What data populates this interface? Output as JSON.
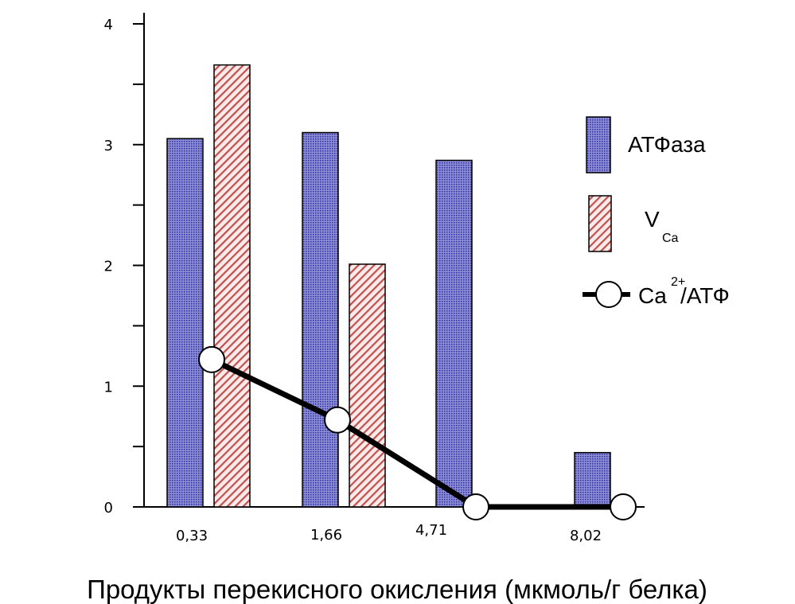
{
  "chart_data": {
    "type": "bar",
    "categories": [
      "0,33",
      "1,66",
      "4,71",
      "8,02"
    ],
    "xlabel": "Продукты перекисного окисления (мкмоль/г белка)",
    "ylabel": "",
    "ylim": [
      0,
      4
    ],
    "y_ticks": [
      "0",
      "1",
      "2",
      "3",
      "4"
    ],
    "grid": false,
    "legend_position": "right",
    "series": [
      {
        "name": "АТФаза",
        "kind": "bar",
        "values": [
          3.05,
          3.1,
          2.87,
          0.45
        ],
        "color": "#3b3bb0",
        "pattern": "blue-dots"
      },
      {
        "name": "V",
        "name_sub": "Ca",
        "kind": "bar",
        "values": [
          3.66,
          2.01,
          null,
          null
        ],
        "color": "#c85050",
        "pattern": "red-hatch"
      },
      {
        "name": "Ca",
        "name_sup": "2+",
        "name_suffix": "/АТФ",
        "kind": "line",
        "values": [
          1.22,
          0.72,
          0,
          0
        ],
        "color": "#000000"
      }
    ]
  }
}
